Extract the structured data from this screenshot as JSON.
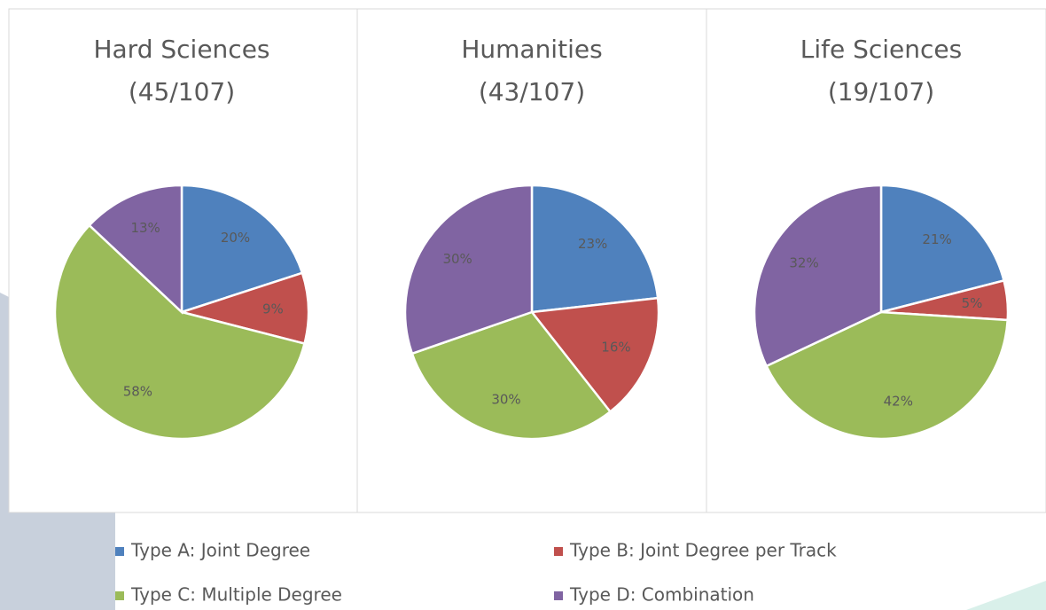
{
  "chart_data": [
    {
      "type": "pie",
      "title": "Hard Sciences",
      "subtitle": "(45/107)",
      "values": [
        20,
        9,
        58,
        13
      ],
      "value_labels": [
        "20%",
        "9%",
        "58%",
        "13%"
      ]
    },
    {
      "type": "pie",
      "title": "Humanities",
      "subtitle": "(43/107)",
      "values": [
        23,
        16,
        30,
        30
      ],
      "value_labels": [
        "23%",
        "16%",
        "30%",
        "30%"
      ]
    },
    {
      "type": "pie",
      "title": "Life Sciences",
      "subtitle": "(19/107)",
      "values": [
        21,
        5,
        42,
        32
      ],
      "value_labels": [
        "21%",
        "5%",
        "42%",
        "32%"
      ]
    }
  ],
  "legend": {
    "categories": [
      "Type A: Joint Degree",
      "Type B: Joint Degree per Track",
      "Type C: Multiple Degree",
      "Type D: Combination"
    ],
    "colors": [
      "#4f81bd",
      "#c0504d",
      "#9bbb59",
      "#8064a2"
    ]
  }
}
